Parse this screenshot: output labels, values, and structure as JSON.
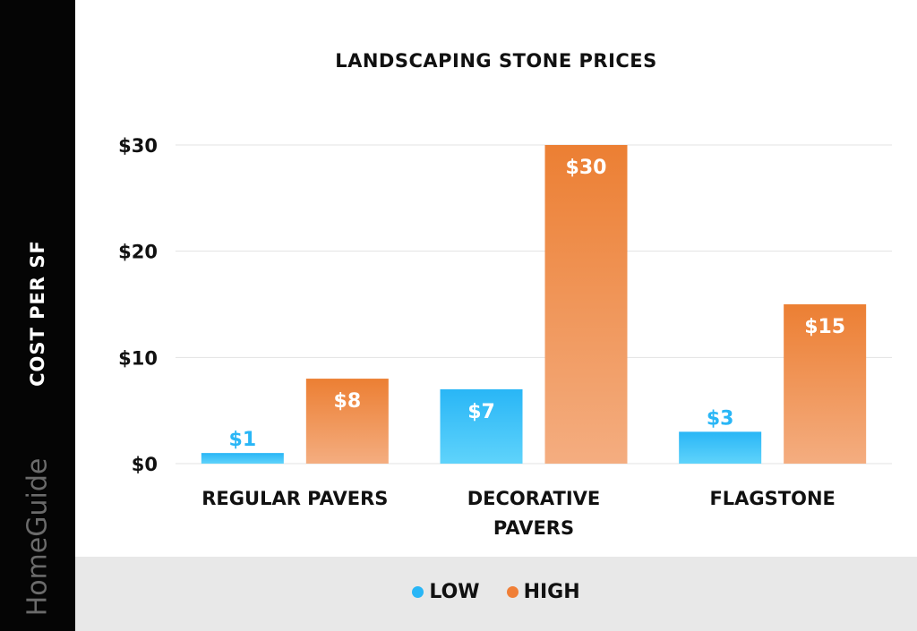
{
  "chart_data": {
    "type": "bar",
    "title": "LANDSCAPING STONE PRICES",
    "ylabel": "COST PER SF",
    "xlabel": "",
    "categories": [
      "REGULAR PAVERS",
      "DECORATIVE PAVERS",
      "FLAGSTONE"
    ],
    "category_lines": [
      [
        "REGULAR PAVERS"
      ],
      [
        "DECORATIVE",
        "PAVERS"
      ],
      [
        "FLAGSTONE"
      ]
    ],
    "series": [
      {
        "name": "LOW",
        "values": [
          1,
          7,
          3
        ],
        "labels": [
          "$1",
          "$7",
          "$3"
        ],
        "color": "#29b6f6"
      },
      {
        "name": "HIGH",
        "values": [
          8,
          30,
          15
        ],
        "labels": [
          "$8",
          "$30",
          "$15"
        ],
        "color": "#f07f37"
      }
    ],
    "ylim": [
      0,
      30
    ],
    "yticks": [
      0,
      10,
      20,
      30
    ],
    "ytick_labels": [
      "$0",
      "$10",
      "$20",
      "$30"
    ],
    "grid": true,
    "legend_position": "bottom"
  },
  "brand": "HomeGuide",
  "colors": {
    "low": "#29b6f6",
    "low_light": "#5fd3fb",
    "high": "#ec7f33",
    "high_light": "#f4ad80",
    "sidebar": "#050505",
    "footer": "#e8e8e8"
  }
}
